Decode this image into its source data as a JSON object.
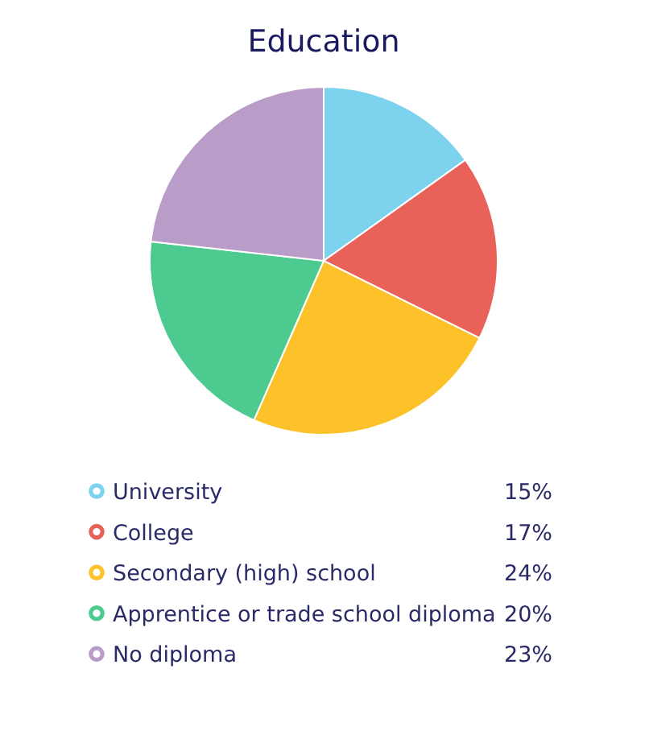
{
  "chart_data": {
    "type": "pie",
    "title": "Education",
    "categories": [
      "University",
      "College",
      "Secondary (high) school",
      "Apprentice or trade school diploma",
      "No diploma"
    ],
    "values": [
      15,
      17,
      24,
      20,
      23
    ],
    "colors": [
      "#7dd3ee",
      "#e8625a",
      "#fdc22a",
      "#4dca8f",
      "#b99cc8"
    ],
    "value_labels": [
      "15%",
      "17%",
      "24%",
      "20%",
      "23%"
    ],
    "legend": "bottom"
  }
}
